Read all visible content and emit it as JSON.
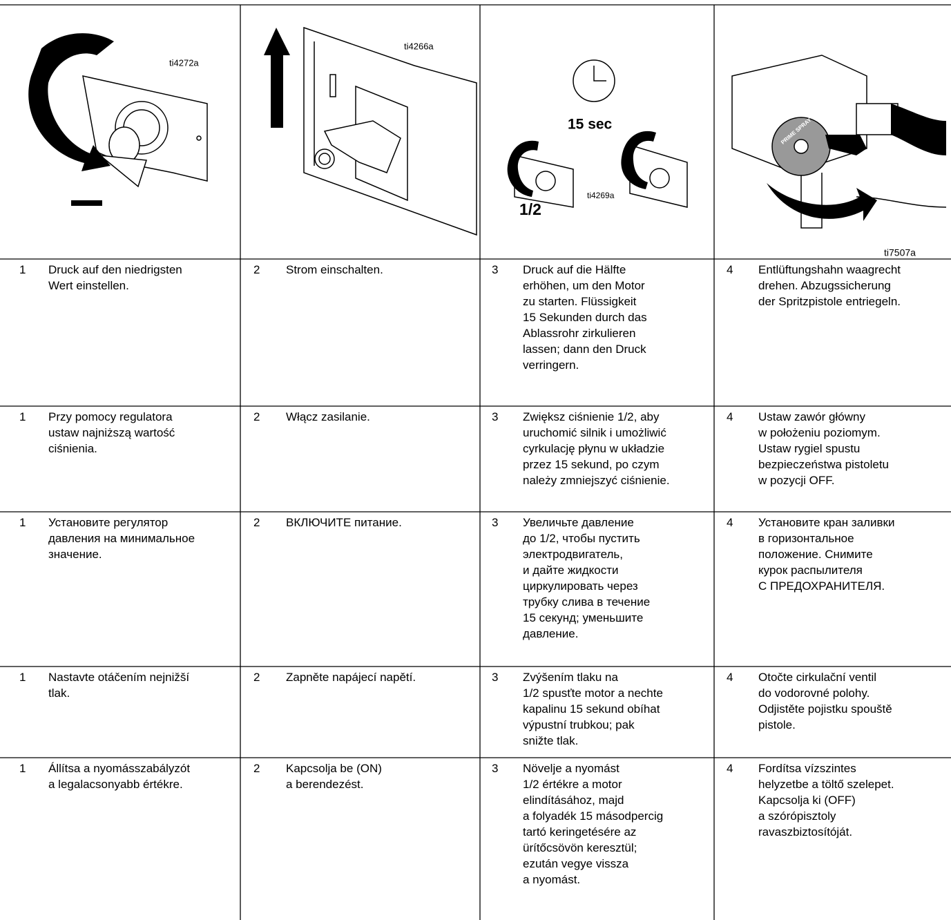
{
  "figures": [
    {
      "labels": [
        "ti4272a"
      ]
    },
    {
      "labels": [
        "ti4266a"
      ]
    },
    {
      "labels": [
        "15 sec",
        "1/2",
        "ti4269a"
      ]
    },
    {
      "labels": [
        "ti7507a",
        "PRIME SPRAY"
      ]
    }
  ],
  "table": {
    "rows": [
      {
        "cells": [
          {
            "number": "1",
            "lines": [
              "Druck auf den niedrigsten",
              "Wert einstellen."
            ]
          },
          {
            "number": "2",
            "lines": [
              "Strom einschalten."
            ]
          },
          {
            "number": "3",
            "lines": [
              "Druck auf die Hälfte",
              "erhöhen, um den Motor",
              "zu starten. Flüssigkeit",
              "15 Sekunden durch das",
              "Ablassrohr zirkulieren",
              "lassen; dann den Druck",
              "verringern."
            ]
          },
          {
            "number": "4",
            "lines": [
              "Entlüftungshahn waagrecht",
              "drehen. Abzugssicherung",
              "der Spritzpistole entriegeln."
            ]
          }
        ]
      },
      {
        "cells": [
          {
            "number": "1",
            "lines": [
              "Przy pomocy regulatora",
              "ustaw najniższą wartość",
              "ciśnienia."
            ]
          },
          {
            "number": "2",
            "lines": [
              "Włącz zasilanie."
            ]
          },
          {
            "number": "3",
            "lines": [
              "Zwiększ ciśnienie 1/2, aby",
              "uruchomić silnik i umożliwić",
              "cyrkulację płynu w układzie",
              "przez 15 sekund, po czym",
              "należy zmniejszyć ciśnienie."
            ]
          },
          {
            "number": "4",
            "lines": [
              "Ustaw zawór główny",
              "w położeniu poziomym.",
              "Ustaw rygiel spustu",
              "bezpieczeństwa pistoletu",
              "w pozycji OFF."
            ]
          }
        ]
      },
      {
        "cells": [
          {
            "number": "1",
            "lines": [
              "Установите регулятор",
              "давления на минимальное",
              "значение."
            ]
          },
          {
            "number": "2",
            "lines": [
              "ВКЛЮЧИТЕ питание."
            ]
          },
          {
            "number": "3",
            "lines": [
              "Увеличьте давление",
              "до 1/2, чтобы пустить",
              "электродвигатель,",
              "и дайте жидкости",
              "циркулировать через",
              "трубку слива в течение",
              "15 секунд; уменьшите",
              "давление."
            ]
          },
          {
            "number": "4",
            "lines": [
              "Установите кран заливки",
              "в горизонтальное",
              "положение. Снимите",
              "курок распылителя",
              "С ПРЕДОХРАНИТЕЛЯ."
            ]
          }
        ]
      },
      {
        "cells": [
          {
            "number": "1",
            "lines": [
              "Nastavte otáčením nejnižší",
              "tlak."
            ]
          },
          {
            "number": "2",
            "lines": [
              "Zapněte napájecí napětí."
            ]
          },
          {
            "number": "3",
            "lines": [
              "Zvýšením tlaku na",
              "1/2 spusťte motor a nechte",
              "kapalinu 15 sekund obíhat",
              "výpustní trubkou; pak",
              "snižte tlak."
            ]
          },
          {
            "number": "4",
            "lines": [
              "Otočte cirkulační ventil",
              "do vodorovné polohy.",
              "Odjistěte pojistku spouště",
              "pistole."
            ]
          }
        ]
      },
      {
        "cells": [
          {
            "number": "1",
            "lines": [
              "Állítsa a nyomásszabályzót",
              "a legalacsonyabb értékre."
            ]
          },
          {
            "number": "2",
            "lines": [
              "Kapcsolja be (ON)",
              "a berendezést."
            ]
          },
          {
            "number": "3",
            "lines": [
              "Növelje a nyomást",
              "1/2 értékre a motor",
              "elindításához, majd",
              "a folyadék 15 másodpercig",
              "tartó keringetésére az",
              "ürítőcsövön keresztül;",
              "ezután vegye vissza",
              "a nyomást."
            ]
          },
          {
            "number": "4",
            "lines": [
              "Fordítsa vízszintes",
              "helyzetbe a töltő szelepet.",
              "Kapcsolja ki (OFF)",
              "a szórópisztoly",
              "ravaszbiztosítóját."
            ]
          }
        ]
      }
    ]
  }
}
